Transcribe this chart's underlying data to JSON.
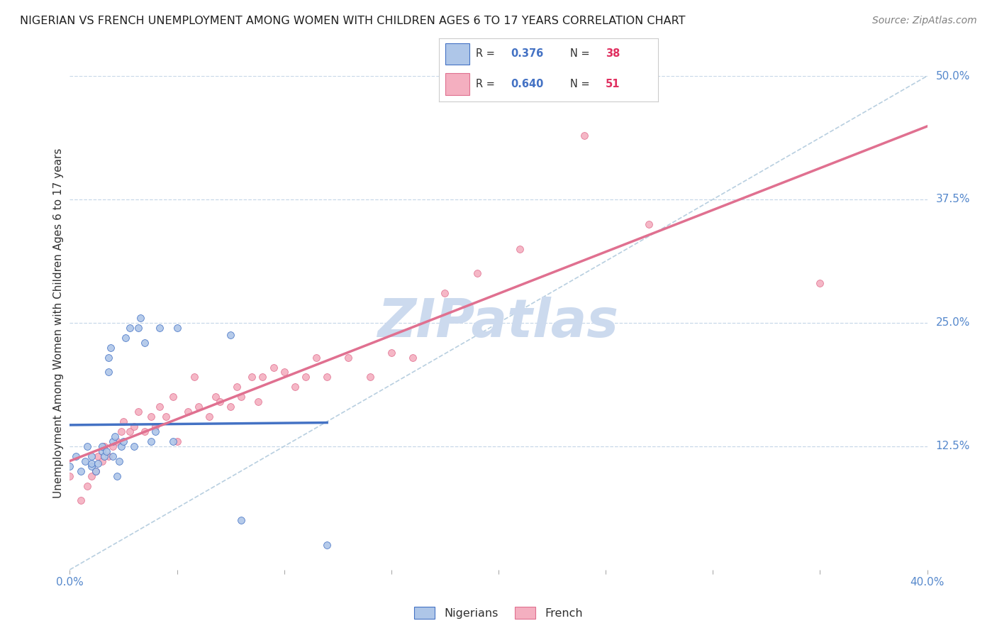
{
  "title": "NIGERIAN VS FRENCH UNEMPLOYMENT AMONG WOMEN WITH CHILDREN AGES 6 TO 17 YEARS CORRELATION CHART",
  "source": "Source: ZipAtlas.com",
  "ylabel": "Unemployment Among Women with Children Ages 6 to 17 years",
  "xlim": [
    0.0,
    0.4
  ],
  "ylim": [
    0.0,
    0.5
  ],
  "ytick_vals_right": [
    0.125,
    0.25,
    0.375,
    0.5
  ],
  "ytick_labels_right": [
    "12.5%",
    "25.0%",
    "37.5%",
    "50.0%"
  ],
  "nigerian_R": 0.376,
  "nigerian_N": 38,
  "french_R": 0.64,
  "french_N": 51,
  "nigerian_color": "#aec6e8",
  "french_color": "#f4afc0",
  "nigerian_line_color": "#4472c4",
  "french_line_color": "#e07090",
  "dashed_line_color": "#b8cfe0",
  "watermark": "ZIPatlas",
  "watermark_color": "#ccdaee",
  "grid_color": "#c8d8e8",
  "nigerian_x": [
    0.0,
    0.003,
    0.005,
    0.007,
    0.008,
    0.01,
    0.01,
    0.01,
    0.012,
    0.013,
    0.015,
    0.015,
    0.016,
    0.017,
    0.018,
    0.018,
    0.019,
    0.02,
    0.02,
    0.021,
    0.022,
    0.023,
    0.024,
    0.025,
    0.026,
    0.028,
    0.03,
    0.032,
    0.033,
    0.035,
    0.038,
    0.04,
    0.042,
    0.048,
    0.05,
    0.075,
    0.08,
    0.12
  ],
  "nigerian_y": [
    0.105,
    0.115,
    0.1,
    0.11,
    0.125,
    0.105,
    0.108,
    0.115,
    0.1,
    0.108,
    0.12,
    0.125,
    0.115,
    0.12,
    0.2,
    0.215,
    0.225,
    0.115,
    0.13,
    0.135,
    0.095,
    0.11,
    0.125,
    0.13,
    0.235,
    0.245,
    0.125,
    0.245,
    0.255,
    0.23,
    0.13,
    0.14,
    0.245,
    0.13,
    0.245,
    0.238,
    0.05,
    0.025
  ],
  "french_x": [
    0.0,
    0.005,
    0.008,
    0.01,
    0.012,
    0.013,
    0.015,
    0.016,
    0.018,
    0.02,
    0.022,
    0.024,
    0.025,
    0.028,
    0.03,
    0.032,
    0.035,
    0.038,
    0.04,
    0.042,
    0.045,
    0.048,
    0.05,
    0.055,
    0.058,
    0.06,
    0.065,
    0.068,
    0.07,
    0.075,
    0.078,
    0.08,
    0.085,
    0.088,
    0.09,
    0.095,
    0.1,
    0.105,
    0.11,
    0.115,
    0.12,
    0.13,
    0.14,
    0.15,
    0.16,
    0.175,
    0.19,
    0.21,
    0.24,
    0.27,
    0.35
  ],
  "french_y": [
    0.095,
    0.07,
    0.085,
    0.095,
    0.1,
    0.115,
    0.11,
    0.125,
    0.115,
    0.125,
    0.13,
    0.14,
    0.15,
    0.14,
    0.145,
    0.16,
    0.14,
    0.155,
    0.145,
    0.165,
    0.155,
    0.175,
    0.13,
    0.16,
    0.195,
    0.165,
    0.155,
    0.175,
    0.17,
    0.165,
    0.185,
    0.175,
    0.195,
    0.17,
    0.195,
    0.205,
    0.2,
    0.185,
    0.195,
    0.215,
    0.195,
    0.215,
    0.195,
    0.22,
    0.215,
    0.28,
    0.3,
    0.325,
    0.44,
    0.35,
    0.29
  ]
}
